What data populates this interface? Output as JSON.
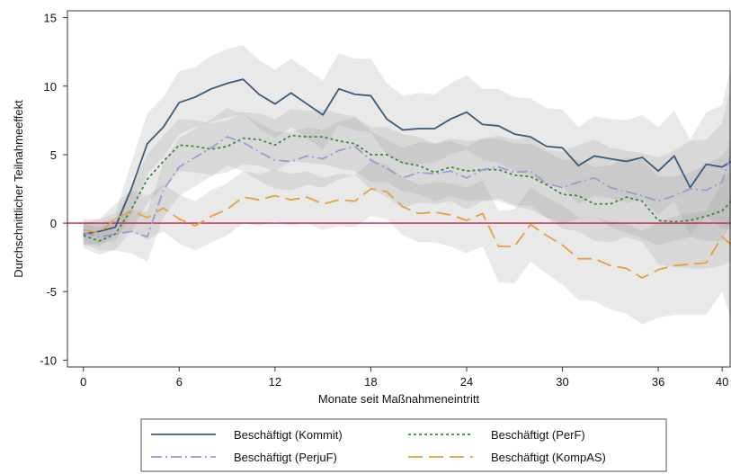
{
  "chart_data": {
    "type": "line",
    "title": "",
    "xlabel": "Monate seit Maßnahmeneintritt",
    "ylabel": "Durchschnittlicher Teilnahmeeffekt",
    "xlim": [
      -1,
      40.5
    ],
    "ylim": [
      -10.5,
      15.5
    ],
    "xticks": [
      0,
      6,
      12,
      18,
      24,
      30,
      36,
      40
    ],
    "yticks": [
      -10,
      -5,
      0,
      5,
      10,
      15
    ],
    "reference_line": {
      "y": 0,
      "color": "#c0234e"
    },
    "grid": false,
    "legend_placement": "bottom",
    "confidence_bands": true,
    "series": [
      {
        "name": "Beschäftigt (Kommit)",
        "color": "#3b5a7a",
        "dash": "solid",
        "values": [
          -0.8,
          -0.6,
          -0.3,
          2.5,
          5.8,
          7.0,
          8.8,
          9.2,
          9.8,
          10.2,
          10.5,
          9.4,
          8.7,
          9.5,
          8.7,
          7.9,
          9.8,
          9.4,
          9.3,
          7.6,
          6.8,
          6.9,
          6.9,
          7.6,
          8.1,
          7.2,
          7.1,
          6.5,
          6.3,
          5.6,
          5.5,
          4.2,
          4.9,
          4.7,
          4.5,
          4.8,
          3.8,
          4.9,
          2.6,
          4.3,
          4.1,
          4.8
        ],
        "lower": [
          -1.6,
          -1.5,
          -1.3,
          0.6,
          3.6,
          4.8,
          6.5,
          7.0,
          7.4,
          7.7,
          8.0,
          6.9,
          6.2,
          7.0,
          6.2,
          5.4,
          7.2,
          6.8,
          6.6,
          5.0,
          4.3,
          4.3,
          4.4,
          5.0,
          5.4,
          4.6,
          4.4,
          3.8,
          3.5,
          2.8,
          2.7,
          1.4,
          2.0,
          1.8,
          1.5,
          1.7,
          0.6,
          1.6,
          -0.9,
          0.5,
          -0.4,
          -0.5
        ],
        "upper": [
          0.0,
          0.3,
          0.7,
          4.4,
          8.0,
          9.2,
          11.1,
          11.4,
          12.2,
          12.7,
          13.0,
          11.9,
          11.2,
          12.0,
          11.2,
          10.4,
          12.4,
          12.0,
          12.0,
          10.2,
          9.3,
          9.5,
          9.4,
          10.2,
          10.8,
          9.8,
          9.8,
          9.2,
          9.1,
          8.4,
          8.3,
          7.0,
          7.8,
          7.6,
          7.5,
          7.9,
          7.0,
          8.2,
          6.1,
          8.1,
          8.6,
          13.7
        ]
      },
      {
        "name": "Beschäftigt (PerF)",
        "color": "#3a8a3a",
        "dash": "dotted",
        "values": [
          -0.9,
          -1.3,
          -0.8,
          1.0,
          3.2,
          4.5,
          5.7,
          5.6,
          5.4,
          5.6,
          6.2,
          6.1,
          5.7,
          6.4,
          6.3,
          6.3,
          6.0,
          5.8,
          5.0,
          5.0,
          4.4,
          4.2,
          3.7,
          4.1,
          3.8,
          3.9,
          3.9,
          3.5,
          3.4,
          2.8,
          2.1,
          2.0,
          1.4,
          1.4,
          1.9,
          1.6,
          0.2,
          0.1,
          0.2,
          0.5,
          0.9,
          2.1
        ],
        "lower": [
          -1.8,
          -2.3,
          -1.9,
          -0.6,
          1.4,
          2.6,
          3.8,
          3.7,
          3.5,
          3.7,
          4.3,
          4.2,
          3.8,
          4.5,
          4.4,
          4.3,
          4.0,
          3.8,
          3.0,
          3.0,
          2.3,
          2.1,
          1.6,
          2.0,
          1.6,
          1.7,
          1.6,
          1.2,
          1.0,
          0.4,
          -0.4,
          -0.6,
          -1.3,
          -1.4,
          -1.0,
          -1.4,
          -3.0,
          -3.2,
          -3.3,
          -3.3,
          -3.1,
          -2.5
        ],
        "upper": [
          0.0,
          -0.3,
          0.3,
          2.6,
          5.0,
          6.4,
          7.6,
          7.5,
          7.3,
          7.5,
          8.1,
          8.0,
          7.6,
          8.3,
          8.2,
          8.3,
          8.0,
          7.8,
          7.0,
          7.0,
          6.5,
          6.3,
          5.8,
          6.2,
          6.0,
          6.1,
          6.2,
          5.8,
          5.8,
          5.2,
          4.6,
          4.6,
          4.1,
          4.2,
          4.8,
          4.6,
          3.4,
          3.4,
          3.7,
          4.3,
          4.9,
          6.7
        ]
      },
      {
        "name": "Beschäftigt (PerjuF)",
        "color": "#9a9ad4",
        "dash": "dashdot",
        "values": [
          -0.7,
          -1.0,
          -0.8,
          -0.6,
          -1.0,
          2.4,
          4.1,
          4.8,
          5.5,
          6.3,
          5.9,
          5.2,
          4.6,
          4.5,
          4.9,
          4.7,
          5.3,
          5.6,
          4.6,
          4.0,
          3.3,
          3.7,
          3.6,
          3.8,
          3.3,
          3.9,
          4.1,
          3.7,
          3.8,
          2.9,
          2.6,
          3.0,
          3.3,
          2.6,
          2.3,
          2.0,
          1.6,
          2.0,
          2.5,
          2.4,
          3.0,
          6.6
        ],
        "lower": [
          -1.5,
          -2.0,
          -2.0,
          -2.2,
          -2.8,
          0.4,
          2.0,
          2.7,
          3.4,
          4.2,
          3.8,
          3.1,
          2.5,
          2.4,
          2.8,
          2.6,
          3.2,
          3.5,
          2.5,
          1.9,
          1.1,
          1.5,
          1.4,
          1.6,
          1.0,
          1.6,
          1.8,
          1.3,
          1.3,
          0.4,
          0.0,
          0.3,
          0.5,
          -0.3,
          -0.7,
          -1.1,
          -1.6,
          -1.3,
          -1.0,
          -1.3,
          -1.3,
          1.0
        ],
        "upper": [
          0.1,
          0.0,
          0.4,
          1.0,
          0.8,
          4.4,
          6.2,
          6.9,
          7.6,
          8.4,
          8.0,
          7.3,
          6.7,
          6.6,
          7.0,
          6.8,
          7.4,
          7.7,
          6.7,
          6.1,
          5.5,
          5.9,
          5.8,
          6.0,
          5.6,
          6.2,
          6.4,
          6.1,
          6.3,
          5.4,
          5.2,
          5.7,
          6.1,
          5.5,
          5.3,
          5.1,
          4.8,
          5.3,
          6.0,
          6.1,
          7.3,
          12.2
        ]
      },
      {
        "name": "Beschäftigt (KompAS)",
        "color": "#e8a03a",
        "dash": "longdash",
        "values": [
          -0.5,
          -0.7,
          0.3,
          0.9,
          0.4,
          1.1,
          0.3,
          -0.2,
          0.5,
          1.0,
          1.9,
          1.7,
          2.0,
          1.7,
          1.9,
          1.4,
          1.7,
          1.6,
          2.5,
          2.3,
          1.2,
          0.7,
          0.8,
          0.6,
          0.2,
          0.7,
          -1.7,
          -1.7,
          -0.1,
          -0.9,
          -1.6,
          -2.6,
          -2.6,
          -3.1,
          -3.3,
          -4.0,
          -3.4,
          -3.1,
          -3.0,
          -2.9,
          -1.0,
          -2.0
        ],
        "lower": [
          -1.3,
          -1.7,
          -0.8,
          -0.6,
          -1.2,
          -0.6,
          -1.5,
          -2.0,
          -1.4,
          -0.9,
          0.0,
          -0.2,
          0.1,
          -0.2,
          0.0,
          -0.5,
          -0.2,
          -0.3,
          0.5,
          0.3,
          -0.9,
          -1.4,
          -1.4,
          -1.7,
          -2.2,
          -1.7,
          -4.3,
          -4.4,
          -2.8,
          -3.7,
          -4.5,
          -5.6,
          -5.7,
          -6.3,
          -6.6,
          -7.4,
          -6.9,
          -6.7,
          -6.7,
          -6.7,
          -5.0,
          -8.7
        ],
        "upper": [
          0.3,
          0.3,
          1.4,
          2.4,
          2.0,
          2.8,
          2.1,
          1.6,
          2.4,
          2.9,
          3.8,
          3.6,
          3.9,
          3.6,
          3.8,
          3.3,
          3.6,
          3.5,
          4.5,
          4.3,
          3.3,
          2.8,
          3.0,
          2.9,
          2.6,
          3.1,
          0.9,
          1.0,
          2.6,
          1.9,
          1.3,
          0.4,
          0.5,
          0.1,
          0.0,
          -0.6,
          0.1,
          0.5,
          0.7,
          0.9,
          3.0,
          4.7
        ]
      }
    ]
  }
}
